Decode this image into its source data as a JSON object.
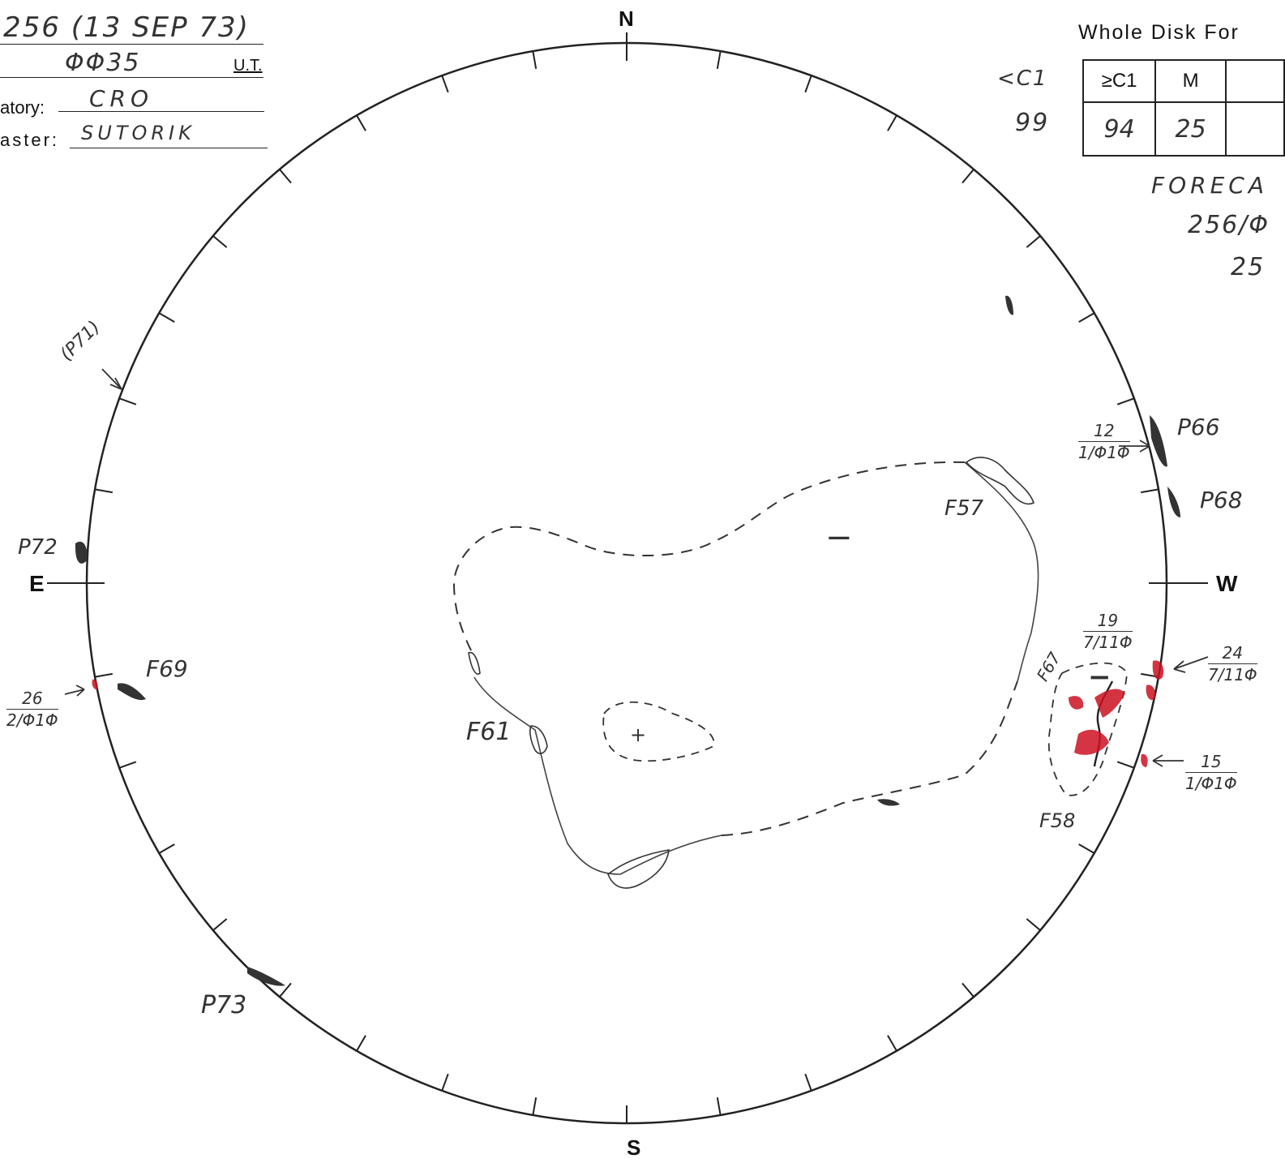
{
  "header": {
    "day_date": "256 (13 SEP 73)",
    "time": "ΦΦ35",
    "time_unit": "U.T.",
    "observatory_label": "atory:",
    "observatory_value": "CRO",
    "forecaster_label": "aster:",
    "forecaster_value": "SUTORIK"
  },
  "forecast_box": {
    "title": "Whole Disk For",
    "col_headers": [
      "≥C1",
      "M"
    ],
    "values": [
      "94",
      "25"
    ],
    "side_label": "<C1",
    "side_value": "99",
    "forecast_title": "FORECA",
    "forecast_line1": "256/Φ",
    "forecast_line2": "25"
  },
  "compass": {
    "north": "N",
    "south": "S",
    "east": "E",
    "west": "W"
  },
  "labels": {
    "p71": "(P71)",
    "p72": "P72",
    "p73": "P73",
    "p66": "P66",
    "p68": "P68",
    "f57": "F57",
    "f58": "F58",
    "f61": "F61",
    "f67": "F67",
    "f69": "F69",
    "minus1": "−",
    "minus2": "−",
    "plus": "+"
  },
  "annotations": {
    "a12": {
      "num": "12",
      "den": "1/Φ1Φ"
    },
    "a19": {
      "num": "19",
      "den": "7/11Φ"
    },
    "a24": {
      "num": "24",
      "den": "7/11Φ"
    },
    "a15": {
      "num": "15",
      "den": "1/Φ1Φ"
    },
    "a26": {
      "num": "26",
      "den": "2/Φ1Φ"
    }
  },
  "colors": {
    "ink": "#222222",
    "pencil": "#444444",
    "red_region": "#cc1122"
  }
}
